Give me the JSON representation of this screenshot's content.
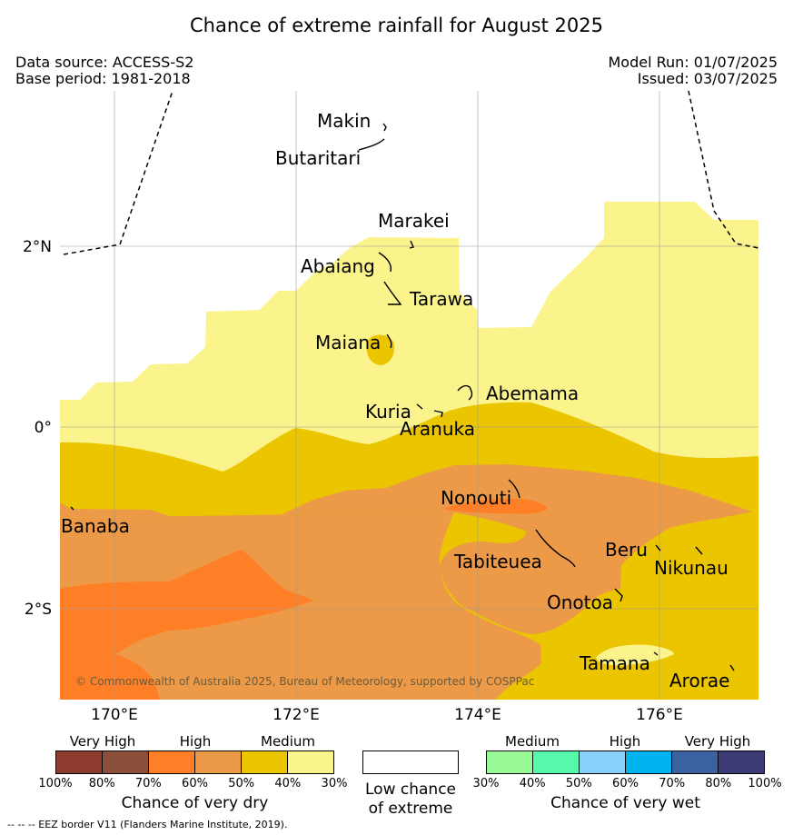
{
  "title": "Chance of extreme rainfall for August 2025",
  "header": {
    "data_source": "Data source: ACCESS-S2",
    "base_period": "Base period: 1981-2018",
    "model_run": "Model Run: 01/07/2025",
    "issued": "Issued: 03/07/2025"
  },
  "map": {
    "lat_labels": [
      "2°N",
      "0°",
      "2°S"
    ],
    "lon_labels": [
      "170°E",
      "172°E",
      "174°E",
      "176°E"
    ],
    "places": [
      "Makin",
      "Butaritari",
      "Marakei",
      "Abaiang",
      "Tarawa",
      "Maiana",
      "Abemama",
      "Kuria",
      "Aranuka",
      "Nonouti",
      "Banaba",
      "Tabiteuea",
      "Beru",
      "Nikunau",
      "Onotoa",
      "Tamana",
      "Arorae"
    ],
    "copyright": "© Commonwealth of Australia 2025, Bureau of Meteorology, supported by COSPPac"
  },
  "legend": {
    "dry": {
      "categories": [
        "Very High",
        "High",
        "Medium"
      ],
      "ticks": [
        "100%",
        "80%",
        "70%",
        "60%",
        "50%",
        "40%",
        "30%"
      ],
      "colors": [
        "#8e3b30",
        "#8b4f3c",
        "#ff7f27",
        "#ec9a47",
        "#ebc600",
        "#fbf48c"
      ],
      "caption": "Chance of very dry"
    },
    "neutral": {
      "caption_line1": "Low chance",
      "caption_line2": "of extreme",
      "color": "#ffffff"
    },
    "wet": {
      "categories": [
        "Medium",
        "High",
        "Very High"
      ],
      "ticks": [
        "30%",
        "40%",
        "50%",
        "60%",
        "70%",
        "80%",
        "100%"
      ],
      "colors": [
        "#98f997",
        "#55f9a9",
        "#87d0fb",
        "#00b3ef",
        "#3a62a0",
        "#3c3b77"
      ],
      "caption": "Chance of very wet"
    }
  },
  "footer": {
    "eez_note": "--  --  -- EEZ border V11 (Flanders Marine Institute, 2019)."
  }
}
